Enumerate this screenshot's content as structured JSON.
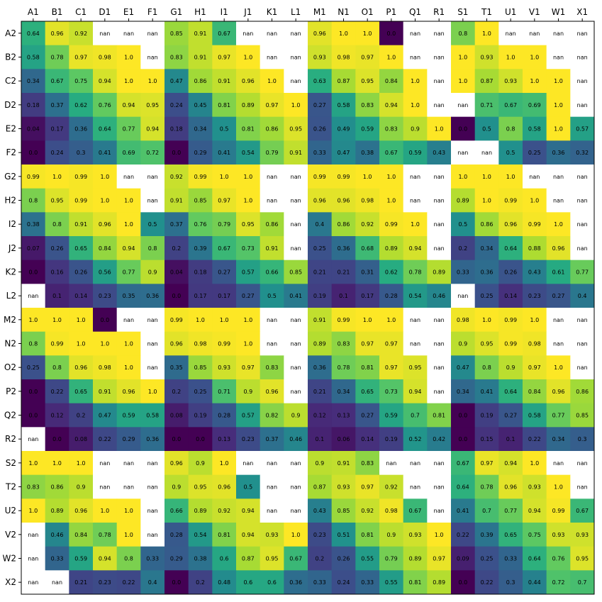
{
  "chart_data": {
    "type": "heatmap",
    "title": "",
    "xlabel": "",
    "ylabel": "",
    "colormap": "viridis",
    "value_range": [
      0,
      1
    ],
    "missing_label": "nan",
    "grid": false,
    "x_tick_position": "top",
    "columns": [
      "A1",
      "B1",
      "C1",
      "D1",
      "E1",
      "F1",
      "G1",
      "H1",
      "I1",
      "J1",
      "K1",
      "L1",
      "M1",
      "N1",
      "O1",
      "P1",
      "Q1",
      "R1",
      "S1",
      "T1",
      "U1",
      "V1",
      "W1",
      "X1"
    ],
    "rows": [
      "A2",
      "B2",
      "C2",
      "D2",
      "E2",
      "F2",
      "G2",
      "H2",
      "I2",
      "J2",
      "K2",
      "L2",
      "M2",
      "N2",
      "O2",
      "P2",
      "Q2",
      "R2",
      "S2",
      "T2",
      "U2",
      "V2",
      "W2",
      "X2"
    ],
    "values": [
      [
        0.64,
        0.96,
        0.92,
        null,
        null,
        null,
        0.85,
        0.91,
        0.67,
        null,
        null,
        null,
        0.96,
        1.0,
        1.0,
        0.0,
        null,
        null,
        0.8,
        1.0,
        null,
        null,
        null,
        null
      ],
      [
        0.58,
        0.78,
        0.97,
        0.98,
        1.0,
        null,
        0.83,
        0.91,
        0.97,
        1.0,
        null,
        null,
        0.93,
        0.98,
        0.97,
        1.0,
        null,
        null,
        1.0,
        0.93,
        1.0,
        1.0,
        null,
        null
      ],
      [
        0.34,
        0.67,
        0.75,
        0.94,
        1.0,
        1.0,
        0.47,
        0.86,
        0.91,
        0.96,
        1.0,
        null,
        0.63,
        0.87,
        0.95,
        0.84,
        1.0,
        null,
        1.0,
        0.87,
        0.93,
        1.0,
        1.0,
        null
      ],
      [
        0.18,
        0.37,
        0.62,
        0.76,
        0.94,
        0.95,
        0.24,
        0.45,
        0.81,
        0.89,
        0.97,
        1.0,
        0.27,
        0.58,
        0.83,
        0.94,
        1.0,
        null,
        null,
        0.71,
        0.67,
        0.69,
        1.0,
        null
      ],
      [
        0.04,
        0.17,
        0.36,
        0.64,
        0.77,
        0.94,
        0.18,
        0.34,
        0.5,
        0.81,
        0.86,
        0.95,
        0.26,
        0.49,
        0.59,
        0.83,
        0.9,
        1.0,
        0.0,
        0.5,
        0.8,
        0.58,
        1.0,
        0.57
      ],
      [
        0.0,
        0.24,
        0.3,
        0.41,
        0.69,
        0.72,
        0.0,
        0.29,
        0.41,
        0.54,
        0.79,
        0.91,
        0.33,
        0.47,
        0.38,
        0.67,
        0.59,
        0.43,
        null,
        null,
        0.5,
        0.25,
        0.36,
        0.32
      ],
      [
        0.99,
        1.0,
        0.99,
        1.0,
        null,
        null,
        0.92,
        0.99,
        1.0,
        1.0,
        null,
        null,
        0.99,
        0.99,
        1.0,
        1.0,
        null,
        null,
        1.0,
        1.0,
        1.0,
        null,
        null,
        null
      ],
      [
        0.8,
        0.95,
        0.99,
        1.0,
        1.0,
        null,
        0.91,
        0.85,
        0.97,
        1.0,
        null,
        null,
        0.96,
        0.96,
        0.98,
        1.0,
        null,
        null,
        0.89,
        1.0,
        0.99,
        1.0,
        null,
        null
      ],
      [
        0.38,
        0.8,
        0.91,
        0.96,
        1.0,
        0.5,
        0.37,
        0.76,
        0.79,
        0.95,
        0.86,
        null,
        0.4,
        0.86,
        0.92,
        0.99,
        1.0,
        null,
        0.5,
        0.86,
        0.96,
        0.99,
        1.0,
        null
      ],
      [
        0.07,
        0.26,
        0.65,
        0.84,
        0.94,
        0.8,
        0.2,
        0.39,
        0.67,
        0.73,
        0.91,
        null,
        0.25,
        0.36,
        0.68,
        0.89,
        0.94,
        null,
        0.2,
        0.34,
        0.64,
        0.88,
        0.96,
        null
      ],
      [
        0.0,
        0.16,
        0.26,
        0.56,
        0.77,
        0.9,
        0.04,
        0.18,
        0.27,
        0.57,
        0.66,
        0.85,
        0.21,
        0.21,
        0.31,
        0.62,
        0.78,
        0.89,
        0.33,
        0.36,
        0.26,
        0.43,
        0.61,
        0.77
      ],
      [
        null,
        0.1,
        0.14,
        0.23,
        0.35,
        0.36,
        0.0,
        0.17,
        0.17,
        0.27,
        0.5,
        0.41,
        0.19,
        0.1,
        0.17,
        0.28,
        0.54,
        0.46,
        null,
        0.25,
        0.14,
        0.23,
        0.27,
        0.4
      ],
      [
        1.0,
        1.0,
        1.0,
        0.0,
        null,
        null,
        0.99,
        1.0,
        1.0,
        1.0,
        null,
        null,
        0.91,
        0.99,
        1.0,
        1.0,
        null,
        null,
        0.98,
        1.0,
        0.99,
        1.0,
        null,
        null
      ],
      [
        0.8,
        0.99,
        1.0,
        1.0,
        1.0,
        null,
        0.96,
        0.98,
        0.99,
        1.0,
        null,
        null,
        0.89,
        0.83,
        0.97,
        0.97,
        null,
        null,
        0.9,
        0.95,
        0.99,
        0.98,
        null,
        null
      ],
      [
        0.25,
        0.8,
        0.96,
        0.98,
        1.0,
        null,
        0.35,
        0.85,
        0.93,
        0.97,
        0.83,
        null,
        0.36,
        0.78,
        0.81,
        0.97,
        0.95,
        null,
        0.47,
        0.8,
        0.9,
        0.97,
        1.0,
        null
      ],
      [
        0.0,
        0.22,
        0.65,
        0.91,
        0.96,
        1.0,
        0.2,
        0.25,
        0.71,
        0.9,
        0.96,
        null,
        0.21,
        0.34,
        0.65,
        0.73,
        0.94,
        null,
        0.34,
        0.41,
        0.64,
        0.84,
        0.96,
        0.86
      ],
      [
        0.0,
        0.12,
        0.2,
        0.47,
        0.59,
        0.58,
        0.08,
        0.19,
        0.28,
        0.57,
        0.82,
        0.9,
        0.12,
        0.13,
        0.27,
        0.59,
        0.7,
        0.81,
        0.0,
        0.19,
        0.27,
        0.58,
        0.77,
        0.85
      ],
      [
        null,
        0.0,
        0.08,
        0.22,
        0.29,
        0.36,
        0.0,
        0.0,
        0.13,
        0.23,
        0.37,
        0.46,
        0.1,
        0.06,
        0.14,
        0.19,
        0.52,
        0.42,
        0.0,
        0.15,
        0.1,
        0.22,
        0.34,
        0.3
      ],
      [
        1.0,
        1.0,
        1.0,
        null,
        null,
        null,
        0.96,
        0.9,
        1.0,
        null,
        null,
        null,
        0.9,
        0.91,
        0.83,
        null,
        null,
        null,
        0.67,
        0.97,
        0.94,
        1.0,
        null,
        null
      ],
      [
        0.83,
        0.86,
        0.9,
        null,
        null,
        null,
        0.9,
        0.95,
        0.96,
        0.5,
        null,
        null,
        0.87,
        0.93,
        0.97,
        0.92,
        null,
        null,
        0.64,
        0.78,
        0.96,
        0.93,
        1.0,
        null
      ],
      [
        1.0,
        0.89,
        0.96,
        1.0,
        1.0,
        null,
        0.66,
        0.89,
        0.92,
        0.94,
        null,
        null,
        0.43,
        0.85,
        0.92,
        0.98,
        0.67,
        null,
        0.41,
        0.7,
        0.77,
        0.94,
        0.99,
        0.67
      ],
      [
        null,
        0.46,
        0.84,
        0.78,
        1.0,
        null,
        0.28,
        0.54,
        0.81,
        0.94,
        0.93,
        1.0,
        0.23,
        0.51,
        0.81,
        0.9,
        0.93,
        1.0,
        0.22,
        0.39,
        0.65,
        0.75,
        0.93,
        0.93
      ],
      [
        null,
        0.33,
        0.59,
        0.94,
        0.8,
        0.33,
        0.29,
        0.38,
        0.6,
        0.87,
        0.95,
        0.67,
        0.2,
        0.26,
        0.55,
        0.79,
        0.89,
        0.97,
        0.09,
        0.25,
        0.33,
        0.64,
        0.76,
        0.95
      ],
      [
        null,
        null,
        0.21,
        0.23,
        0.22,
        0.4,
        0.0,
        0.2,
        0.48,
        0.6,
        0.6,
        0.36,
        0.33,
        0.24,
        0.33,
        0.55,
        0.81,
        0.89,
        0.0,
        0.22,
        0.3,
        0.44,
        0.72,
        0.7
      ]
    ]
  }
}
